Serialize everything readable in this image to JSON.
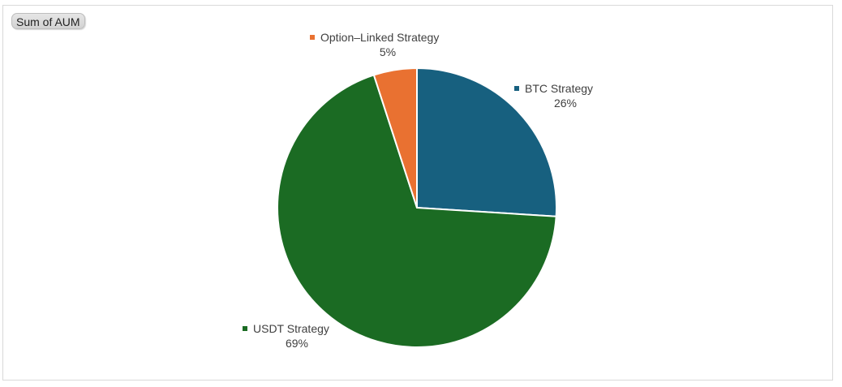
{
  "field_button": {
    "label": "Sum of AUM"
  },
  "chart_data": {
    "type": "pie",
    "title": "",
    "slices": [
      {
        "name": "BTC Strategy",
        "value": 26,
        "label": "26%",
        "color": "#17607f"
      },
      {
        "name": "USDT Strategy",
        "value": 69,
        "label": "69%",
        "color": "#1b6b23"
      },
      {
        "name": "Option–Linked Strategy",
        "value": 5,
        "label": "5%",
        "color": "#e97131"
      }
    ],
    "start": "12 o'clock",
    "direction": "clockwise",
    "legend": "none (data labels with category name and percentage)"
  }
}
